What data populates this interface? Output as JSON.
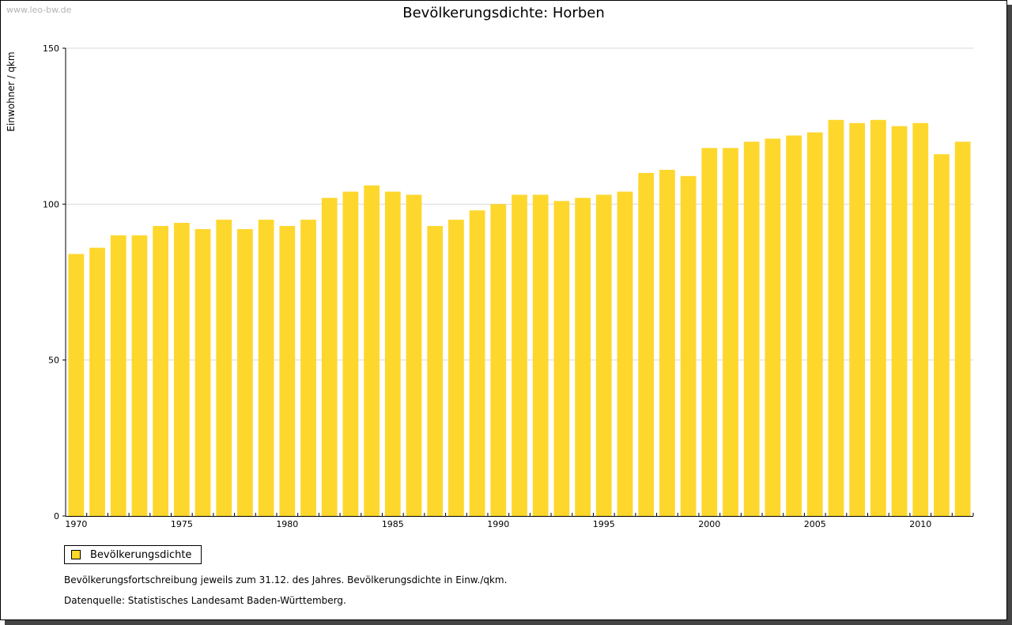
{
  "watermark": "www.leo-bw.de",
  "chart_data": {
    "type": "bar",
    "title": "Bevölkerungsdichte: Horben",
    "ylabel": "Einwohner / qkm",
    "xlabel": "",
    "ylim": [
      0,
      150
    ],
    "yticks": [
      0,
      50,
      100,
      150
    ],
    "grid": true,
    "categories": [
      1970,
      1971,
      1972,
      1973,
      1974,
      1975,
      1976,
      1977,
      1978,
      1979,
      1980,
      1981,
      1982,
      1983,
      1984,
      1985,
      1986,
      1987,
      1988,
      1989,
      1990,
      1991,
      1992,
      1993,
      1994,
      1995,
      1996,
      1997,
      1998,
      1999,
      2000,
      2001,
      2002,
      2003,
      2004,
      2005,
      2006,
      2007,
      2008,
      2009,
      2010,
      2011,
      2012
    ],
    "xtick_labels": [
      "1970",
      "1975",
      "1980",
      "1985",
      "1990",
      "1995",
      "2000",
      "2005",
      "2010"
    ],
    "series": [
      {
        "name": "Bevölkerungsdichte",
        "color": "#fdd72c",
        "values": [
          84,
          86,
          90,
          90,
          93,
          94,
          92,
          95,
          92,
          95,
          93,
          95,
          102,
          104,
          106,
          104,
          103,
          93,
          95,
          98,
          100,
          103,
          103,
          101,
          102,
          103,
          104,
          110,
          111,
          109,
          118,
          118,
          120,
          121,
          122,
          123,
          127,
          126,
          127,
          125,
          126,
          116,
          120
        ]
      }
    ],
    "legend": {
      "position": "bottom-left"
    }
  },
  "notes": {
    "line1": "Bevölkerungsfortschreibung jeweils zum 31.12. des Jahres. Bevölkerungsdichte in Einw./qkm.",
    "line2": "Datenquelle: Statistisches Landesamt Baden-Württemberg."
  }
}
